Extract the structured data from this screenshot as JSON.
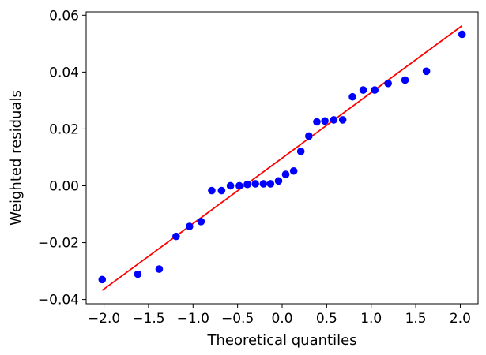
{
  "chart_data": {
    "type": "scatter",
    "title": "",
    "xlabel": "Theoretical quantiles",
    "ylabel": "Weighted residuals",
    "xlim": [
      -2.2,
      2.2
    ],
    "ylim": [
      -0.0415,
      0.0612
    ],
    "grid": false,
    "x_ticks": [
      -2.0,
      -1.5,
      -1.0,
      -0.5,
      0.0,
      0.5,
      1.0,
      1.5,
      2.0
    ],
    "x_tick_labels": [
      "−2.0",
      "−1.5",
      "−1.0",
      "−0.5",
      "0.0",
      "0.5",
      "1.0",
      "1.5",
      "2.0"
    ],
    "y_ticks": [
      -0.04,
      -0.02,
      0.0,
      0.02,
      0.04,
      0.06
    ],
    "y_tick_labels": [
      "−0.04",
      "−0.02",
      "0.00",
      "0.02",
      "0.04",
      "0.06"
    ],
    "points": {
      "color": "#0000ff",
      "x": [
        -2.02,
        -1.62,
        -1.38,
        -1.19,
        -1.04,
        -0.91,
        -0.79,
        -0.68,
        -0.58,
        -0.48,
        -0.39,
        -0.3,
        -0.21,
        -0.13,
        -0.04,
        0.04,
        0.13,
        0.21,
        0.3,
        0.39,
        0.48,
        0.58,
        0.68,
        0.79,
        0.91,
        1.04,
        1.19,
        1.38,
        1.62,
        2.02
      ],
      "y": [
        -0.033,
        -0.0311,
        -0.0293,
        -0.0178,
        -0.0143,
        -0.0126,
        -0.0017,
        -0.0017,
        0.0,
        0.0,
        0.0005,
        0.0007,
        0.0007,
        0.0007,
        0.0017,
        0.004,
        0.0052,
        0.0121,
        0.0175,
        0.0225,
        0.0228,
        0.0232,
        0.0232,
        0.0313,
        0.0337,
        0.0337,
        0.036,
        0.0372,
        0.0403,
        0.0533
      ]
    },
    "fit_line": {
      "color": "#ff0000",
      "x": [
        -2.02,
        2.02
      ],
      "y": [
        -0.0368,
        0.0563
      ]
    }
  }
}
